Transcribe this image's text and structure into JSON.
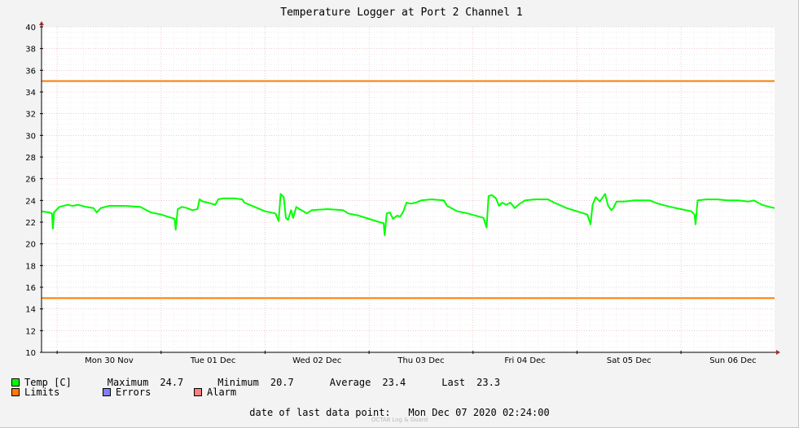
{
  "chart_data": {
    "type": "line",
    "title": "Temperature Logger at Port 2 Channel 1",
    "ylim": [
      10,
      40
    ],
    "y_ticks": [
      10,
      12,
      14,
      16,
      18,
      20,
      22,
      24,
      26,
      28,
      30,
      32,
      34,
      36,
      38,
      40
    ],
    "xlim_days": [
      -0.15,
      6.9
    ],
    "x_tick_labels": [
      "Mon 30 Nov",
      "Tue 01 Dec",
      "Wed 02 Dec",
      "Thu 03 Dec",
      "Fri 04 Dec",
      "Sat 05 Dec",
      "Sun 06 Dec"
    ],
    "grid": true,
    "limits": {
      "upper": 35,
      "lower": 15,
      "color": "#ff7a00"
    },
    "series": [
      {
        "name": "Temp [C]",
        "color": "#00ff00",
        "points": [
          [
            -0.15,
            23.0
          ],
          [
            -0.08,
            22.9
          ],
          [
            -0.05,
            22.8
          ],
          [
            -0.04,
            21.4
          ],
          [
            -0.03,
            22.9
          ],
          [
            0.02,
            23.4
          ],
          [
            0.1,
            23.6
          ],
          [
            0.15,
            23.5
          ],
          [
            0.2,
            23.6
          ],
          [
            0.28,
            23.4
          ],
          [
            0.35,
            23.3
          ],
          [
            0.38,
            22.9
          ],
          [
            0.42,
            23.3
          ],
          [
            0.5,
            23.5
          ],
          [
            0.65,
            23.5
          ],
          [
            0.8,
            23.4
          ],
          [
            0.9,
            22.9
          ],
          [
            1.0,
            22.7
          ],
          [
            1.1,
            22.4
          ],
          [
            1.13,
            22.3
          ],
          [
            1.14,
            21.3
          ],
          [
            1.16,
            23.2
          ],
          [
            1.2,
            23.4
          ],
          [
            1.25,
            23.3
          ],
          [
            1.3,
            23.1
          ],
          [
            1.35,
            23.2
          ],
          [
            1.37,
            24.1
          ],
          [
            1.4,
            23.9
          ],
          [
            1.45,
            23.8
          ],
          [
            1.52,
            23.6
          ],
          [
            1.55,
            24.1
          ],
          [
            1.6,
            24.2
          ],
          [
            1.7,
            24.2
          ],
          [
            1.78,
            24.1
          ],
          [
            1.8,
            23.8
          ],
          [
            1.9,
            23.4
          ],
          [
            2.0,
            23.0
          ],
          [
            2.1,
            22.8
          ],
          [
            2.13,
            22.1
          ],
          [
            2.15,
            24.6
          ],
          [
            2.18,
            24.3
          ],
          [
            2.2,
            22.4
          ],
          [
            2.22,
            22.2
          ],
          [
            2.25,
            23.1
          ],
          [
            2.27,
            22.4
          ],
          [
            2.3,
            23.4
          ],
          [
            2.33,
            23.2
          ],
          [
            2.37,
            23.0
          ],
          [
            2.4,
            22.8
          ],
          [
            2.45,
            23.1
          ],
          [
            2.6,
            23.2
          ],
          [
            2.75,
            23.1
          ],
          [
            2.8,
            22.8
          ],
          [
            2.9,
            22.6
          ],
          [
            3.0,
            22.3
          ],
          [
            3.1,
            22.0
          ],
          [
            3.14,
            21.9
          ],
          [
            3.15,
            20.8
          ],
          [
            3.17,
            22.8
          ],
          [
            3.2,
            22.9
          ],
          [
            3.23,
            22.3
          ],
          [
            3.27,
            22.6
          ],
          [
            3.3,
            22.5
          ],
          [
            3.33,
            23.0
          ],
          [
            3.36,
            23.8
          ],
          [
            3.4,
            23.7
          ],
          [
            3.45,
            23.8
          ],
          [
            3.5,
            24.0
          ],
          [
            3.6,
            24.1
          ],
          [
            3.72,
            24.0
          ],
          [
            3.75,
            23.5
          ],
          [
            3.85,
            23.0
          ],
          [
            3.95,
            22.8
          ],
          [
            4.1,
            22.4
          ],
          [
            4.13,
            21.5
          ],
          [
            4.15,
            24.4
          ],
          [
            4.18,
            24.5
          ],
          [
            4.22,
            24.2
          ],
          [
            4.25,
            23.5
          ],
          [
            4.28,
            23.8
          ],
          [
            4.32,
            23.6
          ],
          [
            4.36,
            23.8
          ],
          [
            4.4,
            23.3
          ],
          [
            4.45,
            23.7
          ],
          [
            4.5,
            24.0
          ],
          [
            4.6,
            24.1
          ],
          [
            4.72,
            24.1
          ],
          [
            4.78,
            23.8
          ],
          [
            4.9,
            23.3
          ],
          [
            5.0,
            23.0
          ],
          [
            5.1,
            22.7
          ],
          [
            5.13,
            21.8
          ],
          [
            5.15,
            23.6
          ],
          [
            5.18,
            24.3
          ],
          [
            5.22,
            23.9
          ],
          [
            5.27,
            24.6
          ],
          [
            5.3,
            23.5
          ],
          [
            5.33,
            23.1
          ],
          [
            5.35,
            23.3
          ],
          [
            5.38,
            23.9
          ],
          [
            5.45,
            23.9
          ],
          [
            5.55,
            24.0
          ],
          [
            5.7,
            24.0
          ],
          [
            5.78,
            23.7
          ],
          [
            5.9,
            23.4
          ],
          [
            6.0,
            23.2
          ],
          [
            6.1,
            23.0
          ],
          [
            6.13,
            22.7
          ],
          [
            6.14,
            21.8
          ],
          [
            6.16,
            24.0
          ],
          [
            6.25,
            24.1
          ],
          [
            6.35,
            24.1
          ],
          [
            6.45,
            24.0
          ],
          [
            6.55,
            24.0
          ],
          [
            6.65,
            23.9
          ],
          [
            6.7,
            24.0
          ],
          [
            6.78,
            23.6
          ],
          [
            6.85,
            23.4
          ],
          [
            6.9,
            23.3
          ]
        ]
      }
    ],
    "stats": {
      "maximum_label": "Maximum",
      "maximum": "24.7",
      "minimum_label": "Minimum",
      "minimum": "20.7",
      "average_label": "Average",
      "average": "23.4",
      "last_label": "Last",
      "last": "23.3"
    }
  },
  "legend": {
    "temp_label": "Temp [C]",
    "temp_color": "#00ff00",
    "limits_label": "Limits",
    "limits_color": "#ff7a00",
    "errors_label": "Errors",
    "errors_color": "#7f7fff",
    "alarm_label": "Alarm",
    "alarm_color": "#ff7f7f"
  },
  "footer": {
    "last_point_label": "date of last data point:",
    "last_point_value": "Mon Dec 07 2020 02:24:00",
    "watermark": "OCTA8 Log & Guard"
  }
}
